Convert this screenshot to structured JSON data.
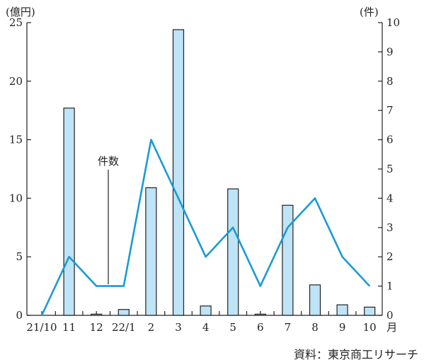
{
  "chart_data": {
    "type": "bar",
    "categories": [
      "21/10",
      "11",
      "12",
      "22/1",
      "2",
      "3",
      "4",
      "5",
      "6",
      "7",
      "8",
      "9",
      "10"
    ],
    "x_axis_suffix": "月",
    "series": [
      {
        "axis": "left",
        "type": "bar",
        "values": [
          0,
          17.7,
          0.1,
          0.5,
          10.9,
          24.4,
          0.8,
          10.8,
          0.1,
          9.4,
          2.6,
          0.9,
          0.7
        ]
      },
      {
        "name": "件数",
        "axis": "right",
        "type": "line",
        "values": [
          0,
          2,
          1,
          1,
          6,
          4,
          2,
          3,
          1,
          3,
          4,
          2,
          1
        ]
      }
    ],
    "y_left": {
      "unit": "(億円)",
      "ylim": [
        0,
        25
      ],
      "ticks": [
        0,
        5,
        10,
        15,
        20,
        25
      ]
    },
    "y_right": {
      "unit": "(件)",
      "ylim": [
        0,
        10
      ],
      "ticks": [
        0,
        1,
        2,
        3,
        4,
        5,
        6,
        7,
        8,
        9,
        10
      ]
    },
    "annotation": "件数",
    "grid": false,
    "colors": {
      "bar_fill": "#bfe3f7",
      "bar_stroke": "#222222",
      "line": "#1a9ad6"
    }
  },
  "source": "資料：東京商工リサーチ"
}
